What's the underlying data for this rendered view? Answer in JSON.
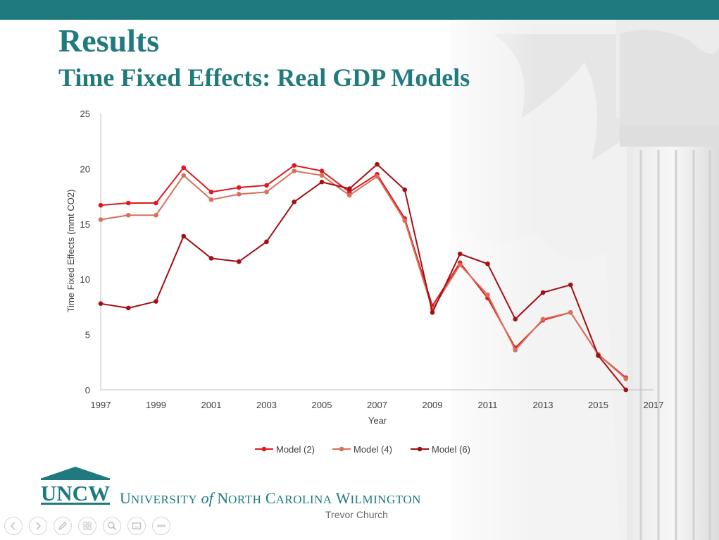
{
  "slide": {
    "title": "Results",
    "subtitle": "Time Fixed Effects: Real GDP Models",
    "presenter": "Trevor Church",
    "colors": {
      "bar": "#1f7a80",
      "title": "#207a7e"
    }
  },
  "logo": {
    "mark_text": "UNCW",
    "name_parts": {
      "u": "U",
      "niversity": "NIVERSITY",
      "of": "of",
      "n": "N",
      "orth": "ORTH",
      "c": "C",
      "arolina": "AROLINA",
      "w": "W",
      "ilmington": "ILMINGTON"
    }
  },
  "toolbar": {
    "buttons": [
      {
        "name": "previous-slide-button",
        "icon": "chevron-left-icon"
      },
      {
        "name": "next-slide-button",
        "icon": "chevron-right-icon"
      },
      {
        "name": "pen-tool-button",
        "icon": "pen-icon"
      },
      {
        "name": "see-all-slides-button",
        "icon": "slides-grid-icon"
      },
      {
        "name": "zoom-button",
        "icon": "magnifier-icon"
      },
      {
        "name": "subtitles-button",
        "icon": "screen-icon"
      },
      {
        "name": "more-options-button",
        "icon": "ellipsis-icon"
      }
    ]
  },
  "chart_data": {
    "type": "line",
    "title": "",
    "xlabel": "Year",
    "ylabel": "Time Fixed Effects (mmt CO2)",
    "xlim": [
      1997,
      2017
    ],
    "ylim": [
      0,
      25
    ],
    "x_ticks": [
      1997,
      1999,
      2001,
      2003,
      2005,
      2007,
      2009,
      2011,
      2013,
      2015,
      2017
    ],
    "y_ticks": [
      0,
      5,
      10,
      15,
      20,
      25
    ],
    "grid": false,
    "legend": "bottom",
    "x": [
      1997,
      1998,
      1999,
      2000,
      2001,
      2002,
      2003,
      2004,
      2005,
      2006,
      2007,
      2008,
      2009,
      2010,
      2011,
      2012,
      2013,
      2014,
      2015,
      2016
    ],
    "series": [
      {
        "name": "Model (2)",
        "color": "#e0191f",
        "values": [
          16.7,
          16.9,
          16.9,
          20.1,
          17.9,
          18.3,
          18.5,
          20.3,
          19.8,
          17.9,
          19.5,
          15.5,
          7.6,
          11.5,
          8.3,
          3.8,
          6.3,
          7.0,
          3.2,
          1.1
        ]
      },
      {
        "name": "Model (4)",
        "color": "#d9705a",
        "values": [
          15.4,
          15.8,
          15.8,
          19.4,
          17.2,
          17.7,
          17.9,
          19.8,
          19.4,
          17.6,
          19.3,
          15.3,
          7.3,
          11.3,
          8.6,
          3.6,
          6.4,
          7.0,
          3.2,
          1.0
        ]
      },
      {
        "name": "Model (6)",
        "color": "#a30f12",
        "values": [
          7.8,
          7.4,
          8.0,
          13.9,
          11.9,
          11.6,
          13.4,
          17.0,
          18.8,
          18.2,
          20.4,
          18.1,
          7.0,
          12.3,
          11.4,
          6.4,
          8.8,
          9.5,
          3.1,
          0.0
        ]
      }
    ]
  }
}
